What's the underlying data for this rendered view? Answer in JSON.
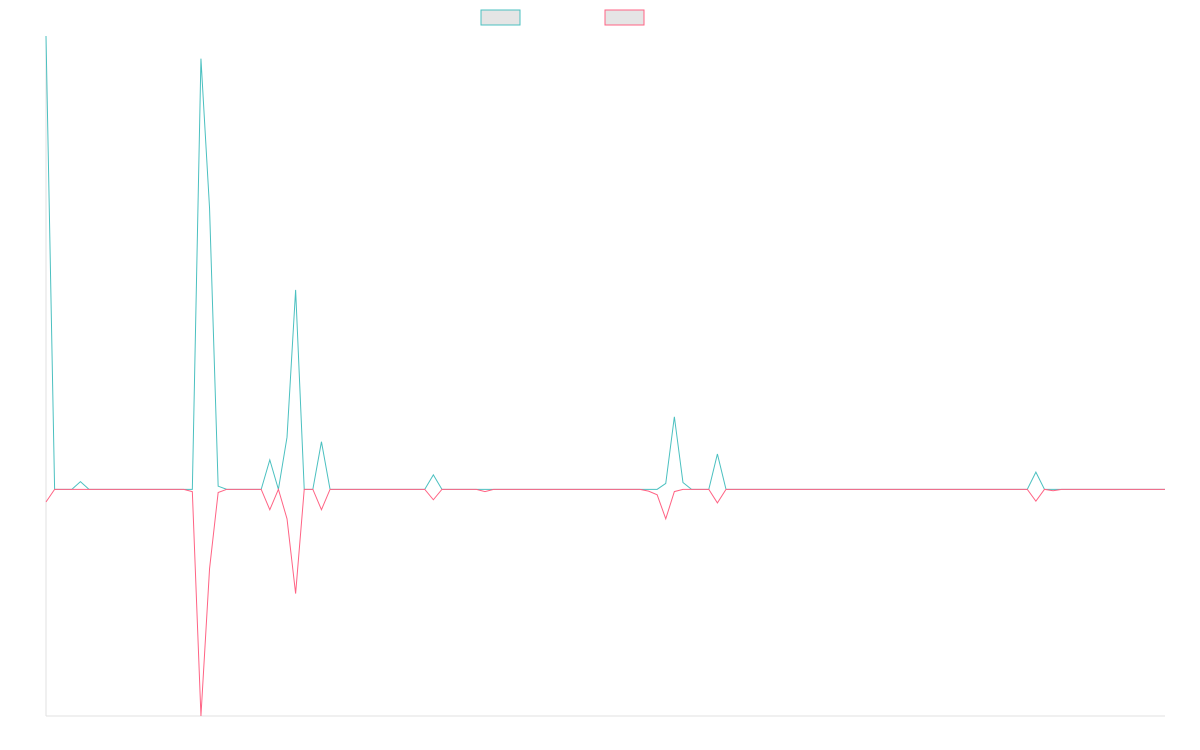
{
  "chart_data": {
    "type": "line",
    "x_count": 131,
    "ylim": [
      -0.5,
      1.0
    ],
    "grid": false,
    "legend": {
      "position": "top-center"
    },
    "colors": {
      "teal": "#4BC0C0",
      "pink": "#FF6384",
      "legend_fill": "#E5E5E5",
      "axis": "#E0E0E0"
    },
    "series": [
      {
        "color": "#4BC0C0",
        "values": [
          1.0,
          0,
          0,
          0,
          0.017,
          0,
          0,
          0,
          0,
          0,
          0,
          0,
          0,
          0,
          0,
          0,
          0,
          0,
          0.95,
          0.62,
          0.007,
          0,
          0,
          0,
          0,
          0,
          0.065,
          0,
          0.115,
          0.44,
          0,
          0,
          0.105,
          0,
          0,
          0,
          0,
          0,
          0,
          0,
          0,
          0,
          0,
          0,
          0,
          0.032,
          0,
          0,
          0,
          0,
          0,
          0,
          0,
          0,
          0,
          0,
          0,
          0,
          0,
          0,
          0,
          0,
          0,
          0,
          0,
          0,
          0,
          0,
          0,
          0,
          0,
          0,
          0.013,
          0.16,
          0.015,
          0,
          0,
          0,
          0.078,
          0,
          0,
          0,
          0,
          0,
          0,
          0,
          0,
          0,
          0,
          0,
          0,
          0,
          0,
          0,
          0,
          0,
          0,
          0,
          0,
          0,
          0,
          0,
          0,
          0,
          0,
          0,
          0,
          0,
          0,
          0,
          0,
          0,
          0,
          0,
          0,
          0.038,
          0,
          0,
          0,
          0,
          0,
          0,
          0,
          0,
          0,
          0,
          0,
          0,
          0,
          0,
          0
        ]
      },
      {
        "color": "#FF6384",
        "values": [
          -0.028,
          0,
          0,
          0,
          0,
          0,
          0,
          0,
          0,
          0,
          0,
          0,
          0,
          0,
          0,
          0,
          0,
          -0.005,
          -0.5,
          -0.175,
          -0.007,
          0,
          0,
          0,
          0,
          0,
          -0.045,
          0,
          -0.065,
          -0.23,
          0,
          0,
          -0.045,
          0,
          0,
          0,
          0,
          0,
          0,
          0,
          0,
          0,
          0,
          0,
          0,
          -0.023,
          0,
          0,
          0,
          0,
          0,
          -0.005,
          0,
          0,
          0,
          0,
          0,
          0,
          0,
          0,
          0,
          0,
          0,
          0,
          0,
          0,
          0,
          0,
          0,
          0,
          -0.004,
          -0.012,
          -0.065,
          -0.005,
          0,
          0,
          0,
          0,
          -0.03,
          0,
          0,
          0,
          0,
          0,
          0,
          0,
          0,
          0,
          0,
          0,
          0,
          0,
          0,
          0,
          0,
          0,
          0,
          0,
          0,
          0,
          0,
          0,
          0,
          0,
          0,
          0,
          0,
          0,
          0,
          0,
          0,
          0,
          0,
          0,
          0,
          -0.026,
          0,
          -0.003,
          0,
          0,
          0,
          0,
          0,
          0,
          0,
          0,
          0,
          0,
          0,
          0,
          0
        ]
      }
    ]
  }
}
